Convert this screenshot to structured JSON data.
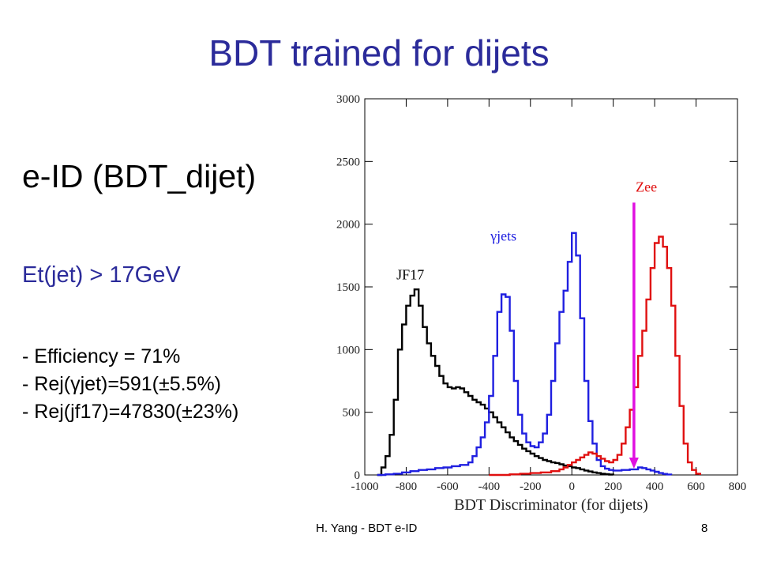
{
  "slide": {
    "title": "BDT trained for dijets",
    "heading": "e-ID (BDT_dijet)",
    "subheading": "Et(jet) > 17GeV",
    "bullets": [
      "- Efficiency = 71%",
      "- Rej(γjet)=591(±5.5%)",
      "- Rej(jf17)=47830(±23%)"
    ],
    "footer_left": "H. Yang - BDT e-ID",
    "page_number": "8"
  },
  "colors": {
    "title": "#2b2b9a",
    "jf17": "#000000",
    "gjets": "#1f1fe0",
    "zee": "#e01010",
    "cut_arrow": "#e010e0"
  },
  "chart_data": {
    "type": "line",
    "xlabel": "BDT Discriminator (for dijets)",
    "ylabel": "",
    "xlim": [
      -1000,
      800
    ],
    "ylim": [
      0,
      3000
    ],
    "xticks": [
      -1000,
      -800,
      -600,
      -400,
      -200,
      0,
      200,
      400,
      600,
      800
    ],
    "yticks": [
      0,
      500,
      1000,
      1500,
      2000,
      2500,
      3000
    ],
    "grid": false,
    "cut_value": 300,
    "series": [
      {
        "name": "JF17",
        "color": "#000000",
        "points": [
          [
            -940,
            0
          ],
          [
            -920,
            60
          ],
          [
            -900,
            150
          ],
          [
            -880,
            320
          ],
          [
            -860,
            600
          ],
          [
            -840,
            1000
          ],
          [
            -820,
            1200
          ],
          [
            -800,
            1350
          ],
          [
            -780,
            1430
          ],
          [
            -760,
            1480
          ],
          [
            -740,
            1350
          ],
          [
            -720,
            1180
          ],
          [
            -700,
            1050
          ],
          [
            -680,
            950
          ],
          [
            -660,
            870
          ],
          [
            -640,
            790
          ],
          [
            -620,
            730
          ],
          [
            -600,
            700
          ],
          [
            -580,
            690
          ],
          [
            -560,
            700
          ],
          [
            -540,
            690
          ],
          [
            -520,
            660
          ],
          [
            -500,
            630
          ],
          [
            -480,
            600
          ],
          [
            -460,
            580
          ],
          [
            -440,
            560
          ],
          [
            -420,
            530
          ],
          [
            -400,
            500
          ],
          [
            -380,
            460
          ],
          [
            -360,
            420
          ],
          [
            -340,
            380
          ],
          [
            -320,
            340
          ],
          [
            -300,
            300
          ],
          [
            -280,
            270
          ],
          [
            -260,
            240
          ],
          [
            -240,
            210
          ],
          [
            -220,
            190
          ],
          [
            -200,
            170
          ],
          [
            -180,
            150
          ],
          [
            -160,
            135
          ],
          [
            -140,
            120
          ],
          [
            -120,
            110
          ],
          [
            -100,
            100
          ],
          [
            -80,
            95
          ],
          [
            -60,
            85
          ],
          [
            -40,
            75
          ],
          [
            -20,
            70
          ],
          [
            0,
            60
          ],
          [
            20,
            55
          ],
          [
            40,
            45
          ],
          [
            60,
            35
          ],
          [
            80,
            28
          ],
          [
            100,
            20
          ],
          [
            120,
            15
          ],
          [
            140,
            10
          ],
          [
            160,
            6
          ],
          [
            180,
            3
          ],
          [
            200,
            0
          ]
        ]
      },
      {
        "name": "γjets",
        "color": "#1f1fe0",
        "points": [
          [
            -940,
            0
          ],
          [
            -900,
            5
          ],
          [
            -860,
            10
          ],
          [
            -820,
            20
          ],
          [
            -780,
            30
          ],
          [
            -740,
            40
          ],
          [
            -700,
            45
          ],
          [
            -660,
            55
          ],
          [
            -620,
            60
          ],
          [
            -580,
            70
          ],
          [
            -540,
            80
          ],
          [
            -500,
            100
          ],
          [
            -480,
            150
          ],
          [
            -460,
            220
          ],
          [
            -440,
            300
          ],
          [
            -420,
            420
          ],
          [
            -400,
            630
          ],
          [
            -380,
            950
          ],
          [
            -360,
            1300
          ],
          [
            -340,
            1440
          ],
          [
            -320,
            1420
          ],
          [
            -300,
            1150
          ],
          [
            -280,
            750
          ],
          [
            -260,
            480
          ],
          [
            -240,
            330
          ],
          [
            -220,
            260
          ],
          [
            -200,
            230
          ],
          [
            -180,
            220
          ],
          [
            -160,
            260
          ],
          [
            -140,
            330
          ],
          [
            -120,
            480
          ],
          [
            -100,
            750
          ],
          [
            -80,
            1050
          ],
          [
            -60,
            1300
          ],
          [
            -40,
            1470
          ],
          [
            -20,
            1700
          ],
          [
            0,
            1930
          ],
          [
            20,
            1750
          ],
          [
            40,
            1250
          ],
          [
            60,
            750
          ],
          [
            80,
            430
          ],
          [
            100,
            250
          ],
          [
            120,
            120
          ],
          [
            140,
            70
          ],
          [
            160,
            50
          ],
          [
            180,
            40
          ],
          [
            200,
            35
          ],
          [
            220,
            35
          ],
          [
            240,
            40
          ],
          [
            260,
            40
          ],
          [
            280,
            45
          ],
          [
            300,
            45
          ],
          [
            320,
            60
          ],
          [
            340,
            55
          ],
          [
            360,
            45
          ],
          [
            380,
            35
          ],
          [
            400,
            25
          ],
          [
            420,
            15
          ],
          [
            440,
            8
          ],
          [
            460,
            4
          ],
          [
            480,
            0
          ]
        ]
      },
      {
        "name": "Zee",
        "color": "#e01010",
        "points": [
          [
            -400,
            0
          ],
          [
            -300,
            5
          ],
          [
            -250,
            10
          ],
          [
            -200,
            15
          ],
          [
            -150,
            20
          ],
          [
            -100,
            30
          ],
          [
            -60,
            45
          ],
          [
            -40,
            60
          ],
          [
            -20,
            80
          ],
          [
            0,
            100
          ],
          [
            20,
            120
          ],
          [
            40,
            140
          ],
          [
            60,
            160
          ],
          [
            80,
            180
          ],
          [
            100,
            170
          ],
          [
            120,
            150
          ],
          [
            140,
            130
          ],
          [
            160,
            110
          ],
          [
            180,
            100
          ],
          [
            200,
            120
          ],
          [
            220,
            160
          ],
          [
            240,
            250
          ],
          [
            260,
            380
          ],
          [
            280,
            520
          ],
          [
            300,
            700
          ],
          [
            320,
            950
          ],
          [
            340,
            1150
          ],
          [
            360,
            1400
          ],
          [
            380,
            1650
          ],
          [
            400,
            1850
          ],
          [
            420,
            1900
          ],
          [
            440,
            1820
          ],
          [
            460,
            1650
          ],
          [
            480,
            1350
          ],
          [
            500,
            950
          ],
          [
            520,
            550
          ],
          [
            540,
            250
          ],
          [
            560,
            100
          ],
          [
            580,
            40
          ],
          [
            600,
            10
          ],
          [
            620,
            0
          ]
        ]
      }
    ],
    "annotations": [
      {
        "text": "JF17",
        "x": -780,
        "y": 1560,
        "color": "#000000"
      },
      {
        "text": "γjets",
        "x": -330,
        "y": 1870,
        "color": "#1f1fe0"
      },
      {
        "text": "Zee",
        "x": 360,
        "y": 2260,
        "color": "#e01010"
      }
    ]
  }
}
